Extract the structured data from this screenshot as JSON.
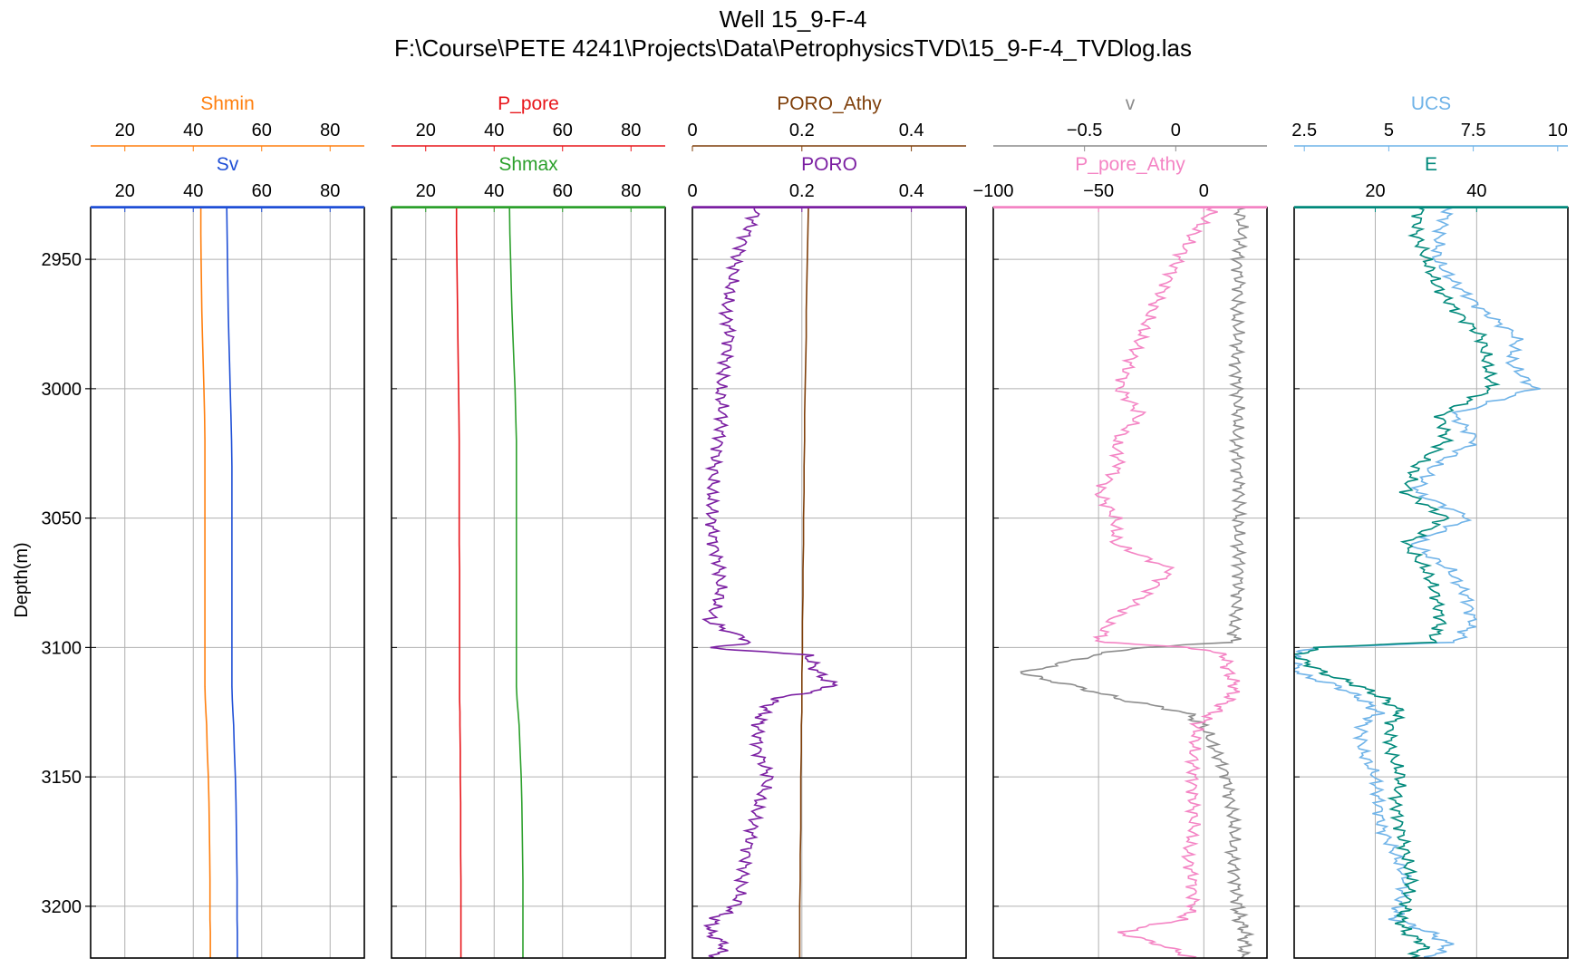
{
  "title": "Well 15_9-F-4",
  "subtitle": "F:\\Course\\PETE 4241\\Projects\\Data\\PetrophysicsTVD\\15_9-F-4_TVDlog.las",
  "ylabel": "Depth(m)",
  "chart_data": {
    "type": "line",
    "title": "Well 15_9-F-4",
    "subtitle": "F:\\Course\\PETE 4241\\Projects\\Data\\PetrophysicsTVD\\15_9-F-4_TVDlog.las",
    "ylabel": "Depth(m)",
    "ylim": [
      3220,
      2930
    ],
    "yticks": [
      2950,
      3000,
      3050,
      3100,
      3150,
      3200
    ],
    "grid": true,
    "depth": [
      2930,
      2940,
      2950,
      2960,
      2970,
      2980,
      2990,
      3000,
      3010,
      3020,
      3030,
      3040,
      3050,
      3060,
      3070,
      3080,
      3090,
      3098,
      3100,
      3103,
      3110,
      3115,
      3120,
      3125,
      3130,
      3140,
      3150,
      3160,
      3170,
      3180,
      3190,
      3200,
      3205,
      3210,
      3215,
      3220
    ],
    "tracks": [
      {
        "top": {
          "name": "Shmin",
          "color": "#ff7f0e",
          "xlim": [
            10,
            90
          ],
          "ticks": [
            20,
            40,
            60,
            80
          ],
          "values": [
            42.2,
            42.2,
            42.3,
            42.4,
            42.5,
            42.7,
            42.9,
            43.1,
            43.3,
            43.4,
            43.4,
            43.4,
            43.4,
            43.4,
            43.4,
            43.4,
            43.4,
            43.4,
            43.4,
            43.4,
            43.4,
            43.4,
            43.5,
            43.7,
            43.9,
            44.1,
            44.4,
            44.6,
            44.7,
            44.8,
            44.9,
            44.9,
            44.9,
            45,
            45,
            45
          ]
        },
        "bottom": {
          "name": "Sv",
          "color": "#1f4fd6",
          "xlim": [
            10,
            90
          ],
          "ticks": [
            20,
            40,
            60,
            80
          ],
          "values": [
            49.8,
            49.9,
            50,
            50.1,
            50.2,
            50.4,
            50.6,
            50.8,
            51,
            51.2,
            51.3,
            51.3,
            51.3,
            51.3,
            51.3,
            51.3,
            51.3,
            51.3,
            51.3,
            51.3,
            51.3,
            51.3,
            51.4,
            51.6,
            51.8,
            52,
            52.3,
            52.5,
            52.6,
            52.7,
            52.8,
            52.8,
            52.8,
            52.9,
            52.9,
            52.9
          ]
        }
      },
      {
        "top": {
          "name": "P_pore",
          "color": "#e8161b",
          "xlim": [
            10,
            90
          ],
          "ticks": [
            20,
            40,
            60,
            80
          ],
          "values": [
            29,
            29,
            29.1,
            29.2,
            29.3,
            29.4,
            29.5,
            29.6,
            29.7,
            29.8,
            29.8,
            29.8,
            29.8,
            29.8,
            29.9,
            29.9,
            29.9,
            29.9,
            29.9,
            29.9,
            29.9,
            29.9,
            29.9,
            30,
            30,
            30.1,
            30.1,
            30.2,
            30.2,
            30.2,
            30.3,
            30.3,
            30.3,
            30.3,
            30.3,
            30.3
          ]
        },
        "bottom": {
          "name": "Shmax",
          "color": "#2ca02c",
          "xlim": [
            10,
            90
          ],
          "ticks": [
            20,
            40,
            60,
            80
          ],
          "values": [
            44.5,
            44.6,
            44.8,
            45,
            45.2,
            45.5,
            45.8,
            46.1,
            46.3,
            46.5,
            46.5,
            46.5,
            46.5,
            46.5,
            46.5,
            46.5,
            46.5,
            46.5,
            46.5,
            46.5,
            46.5,
            46.5,
            46.7,
            47,
            47.3,
            47.6,
            47.9,
            48.1,
            48.2,
            48.3,
            48.4,
            48.4,
            48.4,
            48.4,
            48.4,
            48.4
          ]
        }
      },
      {
        "top": {
          "name": "PORO_Athy",
          "color": "#7f3f0a",
          "xlim": [
            0,
            0.5
          ],
          "ticks": [
            0.0,
            0.2,
            0.4
          ],
          "values": [
            0.212,
            0.211,
            0.21,
            0.209,
            0.208,
            0.208,
            0.207,
            0.206,
            0.205,
            0.205,
            0.204,
            0.204,
            0.203,
            0.203,
            0.202,
            0.202,
            0.201,
            0.201,
            0.201,
            0.201,
            0.2,
            0.2,
            0.2,
            0.2,
            0.199,
            0.199,
            0.198,
            0.198,
            0.198,
            0.197,
            0.197,
            0.196,
            0.196,
            0.196,
            0.196,
            0.196
          ]
        },
        "bottom": {
          "name": "PORO",
          "color": "#7b1fa2",
          "xlim": [
            0,
            0.5
          ],
          "ticks": [
            0.0,
            0.2,
            0.4
          ],
          "values": [
            0.12,
            0.1,
            0.08,
            0.07,
            0.06,
            0.07,
            0.06,
            0.05,
            0.055,
            0.05,
            0.04,
            0.035,
            0.035,
            0.04,
            0.05,
            0.05,
            0.03,
            0.11,
            0.03,
            0.21,
            0.23,
            0.26,
            0.15,
            0.13,
            0.12,
            0.12,
            0.14,
            0.12,
            0.11,
            0.1,
            0.09,
            0.08,
            0.04,
            0.03,
            0.06,
            0.04
          ]
        }
      },
      {
        "top": {
          "name": "v",
          "color": "#8c8c8c",
          "xlim": [
            -1.0,
            0.5
          ],
          "ticks": [
            -0.5,
            0.0
          ],
          "values": [
            0.35,
            0.36,
            0.34,
            0.35,
            0.33,
            0.34,
            0.33,
            0.34,
            0.34,
            0.33,
            0.34,
            0.35,
            0.34,
            0.34,
            0.35,
            0.34,
            0.32,
            0.32,
            -0.2,
            -0.45,
            -0.85,
            -0.55,
            -0.3,
            0.05,
            0.15,
            0.22,
            0.28,
            0.3,
            0.32,
            0.31,
            0.33,
            0.34,
            0.35,
            0.38,
            0.38,
            0.36
          ]
        },
        "bottom": {
          "name": "P_pore_Athy",
          "color": "#f484c4",
          "xlim": [
            -100,
            30
          ],
          "ticks": [
            -100,
            -50,
            0
          ],
          "values": [
            5,
            -5,
            -12,
            -18,
            -25,
            -30,
            -35,
            -40,
            -30,
            -42,
            -40,
            -50,
            -42,
            -42,
            -15,
            -28,
            -45,
            -50,
            -5,
            10,
            12,
            15,
            12,
            5,
            -3,
            -5,
            -5,
            -5,
            -5,
            -8,
            -5,
            -5,
            -10,
            -40,
            -20,
            -5
          ]
        }
      },
      {
        "top": {
          "name": "UCS",
          "color": "#6fb3e8",
          "xlim": [
            2.2,
            10.3
          ],
          "ticks": [
            2.5,
            5.0,
            7.5,
            10.0
          ],
          "values": [
            6.8,
            6.5,
            6.4,
            7,
            7.8,
            8.8,
            8.6,
            9.3,
            6.9,
            7.6,
            6.3,
            5.8,
            7.4,
            5.7,
            6.8,
            7.3,
            7.5,
            7,
            2.8,
            2.2,
            2.3,
            3.5,
            4.2,
            4.7,
            4.2,
            4.2,
            4.6,
            4.7,
            4.8,
            5.2,
            5.5,
            5.3,
            5.2,
            6.2,
            6.8,
            6.2
          ]
        },
        "bottom": {
          "name": "E",
          "color": "#00897b",
          "xlim": [
            4,
            58
          ],
          "ticks": [
            20,
            40
          ],
          "values": [
            29,
            28,
            30,
            32,
            36,
            41,
            42,
            43,
            33,
            34,
            28,
            26,
            34,
            26,
            30,
            32,
            33,
            31,
            9,
            4,
            10,
            17,
            22,
            25,
            23,
            23,
            25,
            24,
            25,
            26,
            27,
            26,
            25,
            26,
            30,
            27
          ]
        }
      }
    ]
  }
}
